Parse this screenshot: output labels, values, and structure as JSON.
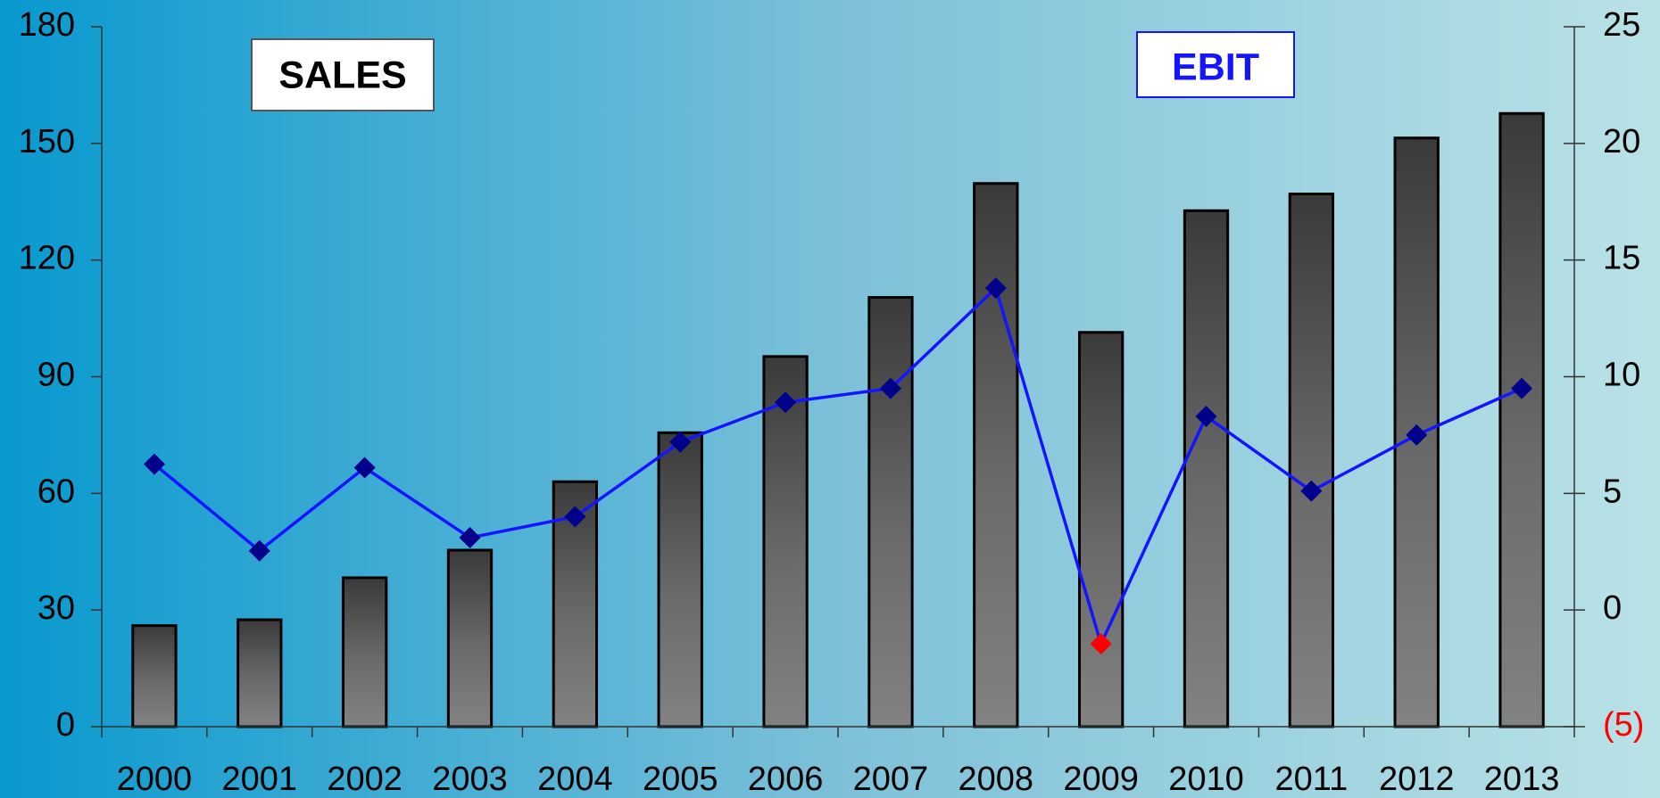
{
  "chart_data": {
    "type": "bar-line",
    "categories": [
      "2000",
      "2001",
      "2002",
      "2003",
      "2004",
      "2005",
      "2006",
      "2007",
      "2008",
      "2009",
      "2010",
      "2011",
      "2012",
      "2013"
    ],
    "series": [
      {
        "name": "SALES",
        "type": "bar",
        "color": "#3a3a3a",
        "values": [
          26,
          27.5,
          38.3,
          45.4,
          63,
          75.6,
          95.2,
          110.4,
          139.7,
          101.4,
          132.7,
          137,
          151.4,
          157.7
        ]
      },
      {
        "name": "EBIT",
        "type": "line",
        "axis": "y2",
        "color": "#1414ff",
        "marker_color": "#00008b",
        "values": [
          6.25,
          2.54,
          6.1,
          3.1,
          4.0,
          7.2,
          8.9,
          9.5,
          13.8,
          -1.45,
          8.3,
          5.1,
          7.5,
          9.5
        ]
      }
    ],
    "negative_color": "#ff0000",
    "ylim": [
      0,
      180
    ],
    "yticks": [
      0,
      30,
      60,
      90,
      120,
      150,
      180
    ],
    "y2lim": [
      -5,
      25
    ],
    "y2ticks": [
      {
        "value": -5,
        "label": "(5)"
      },
      0,
      5,
      10,
      15,
      20,
      25
    ]
  }
}
